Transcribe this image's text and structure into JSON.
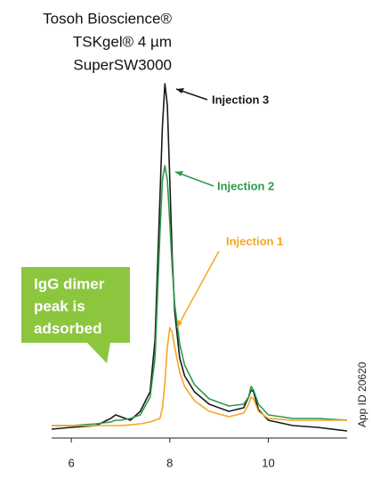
{
  "chart_data": {
    "type": "line",
    "title_lines": [
      "Tosoh Bioscience®",
      "TSKgel® 4 µm",
      "SuperSW3000"
    ],
    "callout": [
      "IgG dimer",
      "peak is",
      "adsorbed"
    ],
    "side_note": "App ID 20620",
    "x": [
      5.6,
      6.0,
      6.5,
      6.8,
      6.9,
      7.0,
      7.2,
      7.4,
      7.6,
      7.7,
      7.8,
      7.85,
      7.9,
      7.95,
      8.0,
      8.05,
      8.1,
      8.2,
      8.3,
      8.5,
      8.8,
      9.2,
      9.5,
      9.6,
      9.65,
      9.7,
      9.8,
      10.0,
      10.5,
      11.0,
      11.6
    ],
    "series": [
      {
        "name": "Injection 3",
        "color": "#1a1a1a",
        "values": [
          2,
          2.5,
          3,
          5,
          6,
          5.5,
          4.5,
          7,
          12.5,
          27,
          67,
          87,
          99,
          93,
          72,
          50,
          35,
          22,
          17,
          12.5,
          9,
          7,
          8,
          11,
          13,
          12.5,
          7.5,
          4.5,
          3,
          2.5,
          1.5
        ]
      },
      {
        "name": "Injection 2",
        "color": "#2e9a4a",
        "values": [
          3,
          3,
          3.5,
          4,
          4.5,
          4.5,
          5,
          6,
          11,
          22,
          57,
          72,
          76,
          72,
          60,
          47,
          37,
          26,
          20,
          14.5,
          10.5,
          8.5,
          9,
          11,
          14,
          13,
          9,
          6,
          5,
          5,
          4.5
        ]
      },
      {
        "name": "Injection 1",
        "color": "#f5a623",
        "values": [
          3,
          3,
          3,
          3,
          3,
          3,
          3.2,
          3.5,
          4,
          4.5,
          5,
          8,
          15,
          25,
          30.5,
          29,
          25,
          18,
          14,
          10,
          7,
          5.5,
          6.5,
          9,
          11,
          10.5,
          7,
          5,
          4.5,
          4.5,
          4.5
        ]
      }
    ],
    "xlim": [
      5.6,
      11.6
    ],
    "xticks": [
      6,
      8,
      10
    ],
    "ylim": [
      0,
      100
    ]
  }
}
